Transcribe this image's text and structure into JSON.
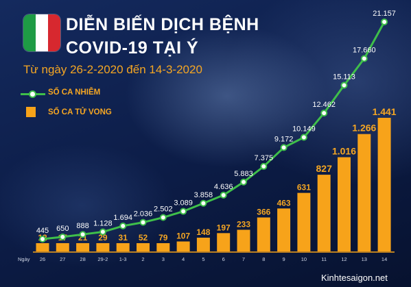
{
  "title_line1": "DIỄN BIẾN DỊCH BỆNH",
  "title_line2": "COVID-19 TẠI Ý",
  "subtitle": "Từ ngày 26-2-2020 đến 14-3-2020",
  "footer": "Kinhtesaigon.net",
  "flag_colors": [
    "#1e9b45",
    "#ffffff",
    "#d7282f"
  ],
  "colors": {
    "line": "#3fbf4a",
    "bar": "#f7a31a",
    "text_accent": "#f5a623",
    "background": "#0d1e4a"
  },
  "chart_data": {
    "type": "bar",
    "x_axis_prefix": "Ngày",
    "categories": [
      "26",
      "27",
      "28",
      "29-2",
      "1-3",
      "2",
      "3",
      "4",
      "5",
      "6",
      "7",
      "8",
      "9",
      "10",
      "11",
      "12",
      "13",
      "14"
    ],
    "series": [
      {
        "name": "SỐ CA NHIỄM",
        "type": "line",
        "values": [
          445,
          650,
          888,
          1128,
          1694,
          2036,
          2502,
          3089,
          3858,
          4636,
          5883,
          7375,
          9172,
          10149,
          12462,
          15113,
          17660,
          21157
        ],
        "labels": [
          "445",
          "650",
          "888",
          "1.128",
          "1.694",
          "2.036",
          "2.502",
          "3.089",
          "3.858",
          "4.636",
          "5.883",
          "7.375",
          "9.172",
          "10.149",
          "12.462",
          "15.113",
          "17.660",
          "21.157"
        ]
      },
      {
        "name": "SỐ CA TỬ VONG",
        "type": "bar",
        "values": [
          12,
          17,
          21,
          29,
          31,
          52,
          79,
          107,
          148,
          197,
          233,
          366,
          463,
          631,
          827,
          1016,
          1266,
          1441
        ],
        "labels": [
          "12",
          "17",
          "21",
          "29",
          "31",
          "52",
          "79",
          "107",
          "148",
          "197",
          "233",
          "366",
          "463",
          "631",
          "827",
          "1.016",
          "1.266",
          "1.441"
        ]
      }
    ],
    "legend_position": "top-left",
    "grid": false
  }
}
